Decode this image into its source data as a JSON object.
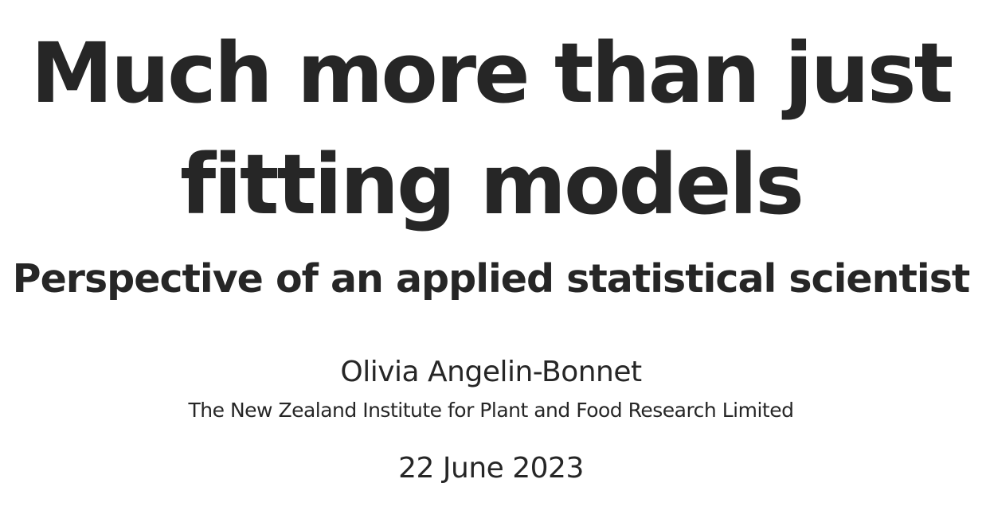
{
  "slide": {
    "title_lines": [
      "Much more than just",
      "fitting models"
    ],
    "subtitle": "Perspective of an applied statistical scientist",
    "author": "Olivia Angelin-Bonnet",
    "institute": "The New Zealand Institute for Plant and Food Research Limited",
    "date": "22 June 2023"
  },
  "colors": {
    "text": "#262626",
    "background": "#ffffff"
  }
}
